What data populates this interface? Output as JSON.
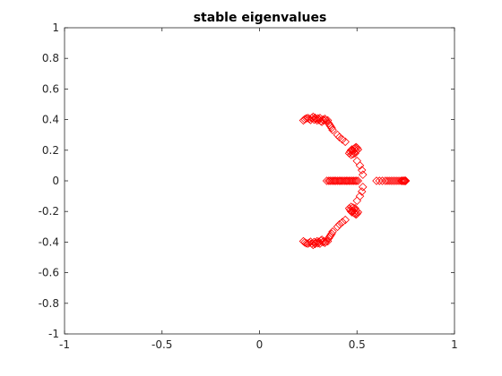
{
  "chart_data": {
    "type": "scatter",
    "title": "stable eigenvalues",
    "xlabel": "",
    "ylabel": "",
    "xlim": [
      -1,
      1
    ],
    "ylim": [
      -1,
      1
    ],
    "x_ticks": [
      -1,
      -0.5,
      0,
      0.5,
      1
    ],
    "x_tick_labels": [
      "-1",
      "-0.5",
      "0",
      "0.5",
      "1"
    ],
    "y_ticks": [
      -1,
      -0.8,
      -0.6,
      -0.4,
      -0.2,
      0,
      0.2,
      0.4,
      0.6,
      0.8,
      1
    ],
    "y_tick_labels": [
      "-1",
      "-0.8",
      "-0.6",
      "-0.4",
      "-0.2",
      "0",
      "0.2",
      "0.4",
      "0.6",
      "0.8",
      "1"
    ],
    "grid": false,
    "box": true,
    "marker": "diamond",
    "marker_color": "#ff0000",
    "series": [
      {
        "values": [
          [
            0.225,
            0.395
          ],
          [
            0.232,
            0.402
          ],
          [
            0.24,
            0.408
          ],
          [
            0.248,
            0.41
          ],
          [
            0.255,
            0.405
          ],
          [
            0.262,
            0.398
          ],
          [
            0.268,
            0.41
          ],
          [
            0.275,
            0.418
          ],
          [
            0.28,
            0.4
          ],
          [
            0.285,
            0.412
          ],
          [
            0.29,
            0.405
          ],
          [
            0.295,
            0.395
          ],
          [
            0.3,
            0.408
          ],
          [
            0.305,
            0.398
          ],
          [
            0.31,
            0.41
          ],
          [
            0.315,
            0.39
          ],
          [
            0.32,
            0.385
          ],
          [
            0.325,
            0.4
          ],
          [
            0.33,
            0.395
          ],
          [
            0.335,
            0.405
          ],
          [
            0.34,
            0.398
          ],
          [
            0.345,
            0.388
          ],
          [
            0.35,
            0.395
          ],
          [
            0.355,
            0.375
          ],
          [
            0.36,
            0.365
          ],
          [
            0.365,
            0.355
          ],
          [
            0.37,
            0.345
          ],
          [
            0.375,
            0.332
          ],
          [
            0.4,
            0.3
          ],
          [
            0.41,
            0.285
          ],
          [
            0.425,
            0.27
          ],
          [
            0.44,
            0.255
          ],
          [
            0.46,
            0.18
          ],
          [
            0.465,
            0.19
          ],
          [
            0.47,
            0.2
          ],
          [
            0.475,
            0.205
          ],
          [
            0.48,
            0.195
          ],
          [
            0.485,
            0.21
          ],
          [
            0.49,
            0.215
          ],
          [
            0.495,
            0.22
          ],
          [
            0.5,
            0.215
          ],
          [
            0.505,
            0.205
          ],
          [
            0.47,
            0.17
          ],
          [
            0.48,
            0.175
          ],
          [
            0.49,
            0.18
          ],
          [
            0.495,
            0.195
          ],
          [
            0.5,
            0.13
          ],
          [
            0.515,
            0.1
          ],
          [
            0.525,
            0.07
          ],
          [
            0.53,
            0.04
          ],
          [
            0.345,
            0
          ],
          [
            0.355,
            0
          ],
          [
            0.362,
            0
          ],
          [
            0.37,
            0
          ],
          [
            0.378,
            0
          ],
          [
            0.385,
            0
          ],
          [
            0.392,
            0
          ],
          [
            0.4,
            0
          ],
          [
            0.408,
            0
          ],
          [
            0.415,
            0
          ],
          [
            0.422,
            0
          ],
          [
            0.43,
            0
          ],
          [
            0.438,
            0
          ],
          [
            0.445,
            0
          ],
          [
            0.452,
            0
          ],
          [
            0.46,
            0
          ],
          [
            0.467,
            0
          ],
          [
            0.475,
            0
          ],
          [
            0.482,
            0
          ],
          [
            0.49,
            0
          ],
          [
            0.497,
            0
          ],
          [
            0.505,
            0
          ],
          [
            0.6,
            0
          ],
          [
            0.615,
            0
          ],
          [
            0.63,
            0
          ],
          [
            0.645,
            0
          ],
          [
            0.655,
            0
          ],
          [
            0.665,
            0
          ],
          [
            0.675,
            0
          ],
          [
            0.685,
            0
          ],
          [
            0.695,
            0
          ],
          [
            0.705,
            0
          ],
          [
            0.715,
            0
          ],
          [
            0.725,
            0
          ],
          [
            0.73,
            0
          ],
          [
            0.735,
            0
          ],
          [
            0.74,
            0
          ],
          [
            0.743,
            0
          ],
          [
            0.746,
            0
          ],
          [
            0.748,
            0
          ],
          [
            0.75,
            0
          ],
          [
            0.53,
            -0.04
          ],
          [
            0.525,
            -0.07
          ],
          [
            0.515,
            -0.1
          ],
          [
            0.5,
            -0.13
          ],
          [
            0.46,
            -0.18
          ],
          [
            0.465,
            -0.19
          ],
          [
            0.47,
            -0.2
          ],
          [
            0.475,
            -0.205
          ],
          [
            0.48,
            -0.195
          ],
          [
            0.485,
            -0.21
          ],
          [
            0.49,
            -0.215
          ],
          [
            0.495,
            -0.22
          ],
          [
            0.5,
            -0.215
          ],
          [
            0.505,
            -0.205
          ],
          [
            0.47,
            -0.17
          ],
          [
            0.48,
            -0.175
          ],
          [
            0.49,
            -0.18
          ],
          [
            0.495,
            -0.195
          ],
          [
            0.44,
            -0.255
          ],
          [
            0.425,
            -0.27
          ],
          [
            0.41,
            -0.285
          ],
          [
            0.4,
            -0.3
          ],
          [
            0.375,
            -0.332
          ],
          [
            0.37,
            -0.345
          ],
          [
            0.365,
            -0.355
          ],
          [
            0.36,
            -0.365
          ],
          [
            0.355,
            -0.375
          ],
          [
            0.35,
            -0.395
          ],
          [
            0.345,
            -0.388
          ],
          [
            0.34,
            -0.398
          ],
          [
            0.335,
            -0.405
          ],
          [
            0.33,
            -0.395
          ],
          [
            0.325,
            -0.4
          ],
          [
            0.32,
            -0.385
          ],
          [
            0.315,
            -0.39
          ],
          [
            0.31,
            -0.41
          ],
          [
            0.305,
            -0.398
          ],
          [
            0.3,
            -0.408
          ],
          [
            0.295,
            -0.395
          ],
          [
            0.29,
            -0.405
          ],
          [
            0.285,
            -0.412
          ],
          [
            0.28,
            -0.4
          ],
          [
            0.275,
            -0.418
          ],
          [
            0.268,
            -0.41
          ],
          [
            0.262,
            -0.398
          ],
          [
            0.255,
            -0.405
          ],
          [
            0.248,
            -0.41
          ],
          [
            0.24,
            -0.408
          ],
          [
            0.232,
            -0.402
          ],
          [
            0.225,
            -0.395
          ]
        ]
      }
    ]
  }
}
